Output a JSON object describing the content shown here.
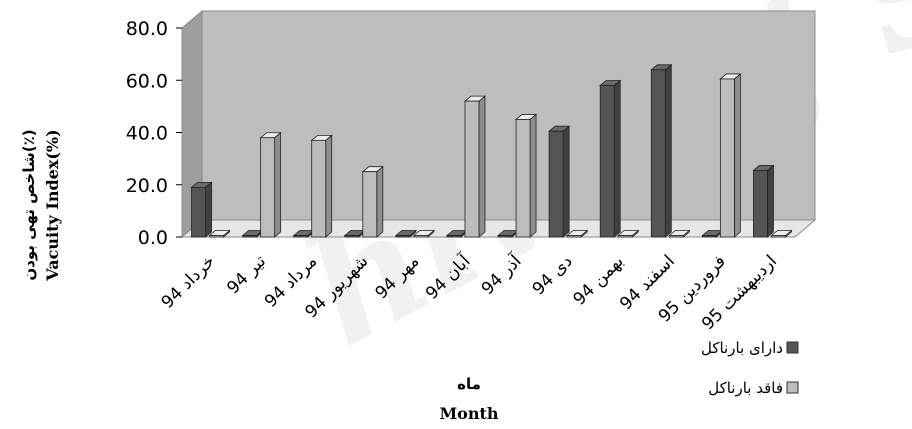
{
  "chart_data": {
    "type": "bar",
    "categories": [
      "خرداد 94",
      "تیر 94",
      "مرداد 94",
      "شهریور 94",
      "مهر 94",
      "آبان 94",
      "آذر 94",
      "دی 94",
      "بهمن 94",
      "اسفند 94",
      "فروردین 95",
      "اردیبهشت 95"
    ],
    "series": [
      {
        "name": "دارای بارناکل",
        "color": "#555555",
        "values": [
          19.0,
          0,
          0,
          0,
          0,
          0,
          0,
          40.5,
          58.0,
          64.0,
          0,
          25.5
        ]
      },
      {
        "name": "فاقد بارناکل",
        "color": "#bdbdbd",
        "values": [
          0,
          38.0,
          37.0,
          25.0,
          0,
          52.0,
          45.0,
          0,
          0,
          0,
          60.5,
          0
        ]
      }
    ],
    "yticks": [
      "0.0",
      "20.0",
      "40.0",
      "60.0",
      "80.0"
    ],
    "ylim": [
      0,
      80
    ],
    "ylabel_fa": "شاخص تهی بودن(٪)",
    "ylabel_en": "Vacuity Index(%)",
    "xlabel_fa": "ماه",
    "xlabel_en": "Month",
    "legend_position": "right",
    "grid": false,
    "style": "3d-column"
  }
}
